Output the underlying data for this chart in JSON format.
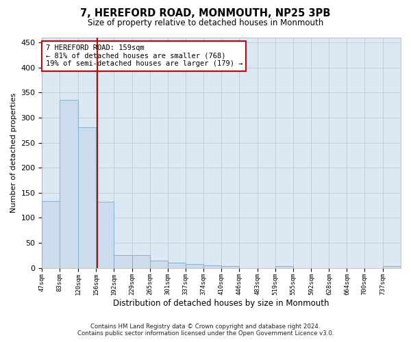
{
  "title": "7, HEREFORD ROAD, MONMOUTH, NP25 3PB",
  "subtitle": "Size of property relative to detached houses in Monmouth",
  "xlabel": "Distribution of detached houses by size in Monmouth",
  "ylabel": "Number of detached properties",
  "footnote1": "Contains HM Land Registry data © Crown copyright and database right 2024.",
  "footnote2": "Contains public sector information licensed under the Open Government Licence v3.0.",
  "bar_edges": [
    47,
    83,
    120,
    156,
    192,
    229,
    265,
    301,
    337,
    374,
    410,
    446,
    483,
    519,
    555,
    592,
    628,
    664,
    700,
    737,
    773
  ],
  "bar_heights": [
    134,
    335,
    281,
    132,
    26,
    26,
    15,
    11,
    7,
    5,
    4,
    0,
    0,
    3,
    0,
    0,
    0,
    0,
    0,
    3
  ],
  "bar_color": "#ccdcec",
  "bar_edge_color": "#7aaac8",
  "property_size": 159,
  "property_label": "7 HEREFORD ROAD: 159sqm",
  "annotation_line1": "← 81% of detached houses are smaller (768)",
  "annotation_line2": "19% of semi-detached houses are larger (179) →",
  "vline_color": "#cc0000",
  "ylim": [
    0,
    460
  ],
  "yticks": [
    0,
    50,
    100,
    150,
    200,
    250,
    300,
    350,
    400,
    450
  ],
  "background_color": "#ffffff",
  "plot_bg_color": "#dce8f4",
  "grid_color": "#c0ccd8"
}
